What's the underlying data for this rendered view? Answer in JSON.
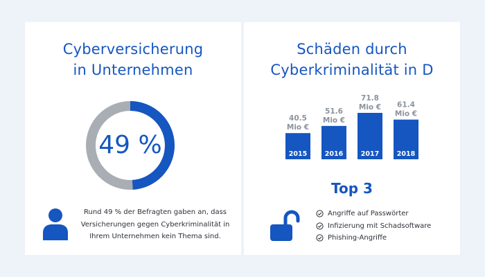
{
  "colors": {
    "accent": "#1556c0",
    "ring_track": "#a9adb4",
    "background": "#eef2f9",
    "bar_label": "#8c939d"
  },
  "left": {
    "title_line1": "Cyberversicherung",
    "title_line2": "in Unternehmen",
    "donut_percent": 49,
    "donut_label": "49 %",
    "person_icon": "person-icon",
    "text_line1": "Rund 49 % der Befragten gaben an, dass",
    "text_line2": "Versicherungen gegen Cyberkriminalität in",
    "text_line3": "Ihrem Unternehmen kein Thema sind."
  },
  "right": {
    "title_line1": "Schäden durch",
    "title_line2": "Cyberkriminalität in D",
    "top_title": "Top 3",
    "lock_icon": "unlocked-padlock-icon",
    "top_items": [
      "Angriffe auf Passwörter",
      "Infizierung mit Schadsoftware",
      "Phishing-Angriffe"
    ]
  },
  "chart_data": {
    "type": "bar",
    "title": "Schäden durch Cyberkriminalität in D",
    "categories": [
      "2015",
      "2016",
      "2017",
      "2018"
    ],
    "values": [
      40.5,
      51.6,
      71.8,
      61.4
    ],
    "value_labels": [
      [
        "40.5",
        "Mio €"
      ],
      [
        "51.6",
        "Mio €"
      ],
      [
        "71.8",
        "Mio €"
      ],
      [
        "61.4",
        "Mio €"
      ]
    ],
    "unit": "Mio €",
    "xlabel": "",
    "ylabel": "",
    "ylim": [
      0,
      75
    ],
    "grid": false
  }
}
